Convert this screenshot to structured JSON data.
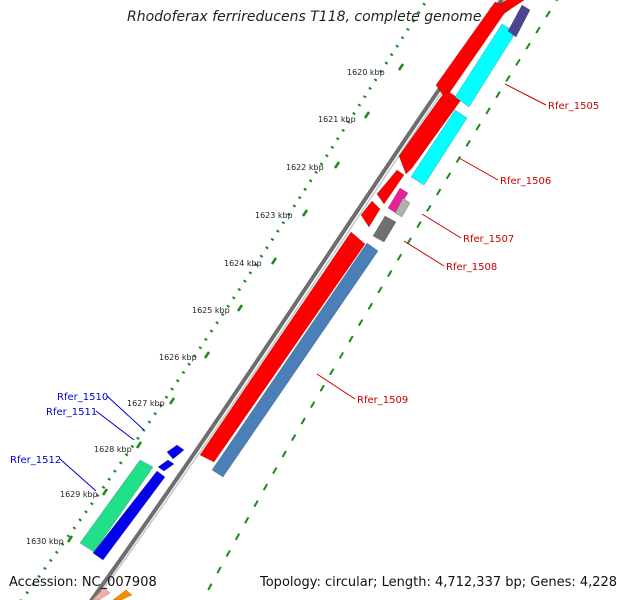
{
  "title": "Rhodoferax ferrireducens T118, complete genome",
  "footer": {
    "accession": "Accession: NC_007908",
    "summary": "Topology: circular; Length: 4,712,337 bp; Genes: 4,228"
  },
  "colors": {
    "backbone": "#808080",
    "tick_track": "#1a8a1a",
    "label_forward": "#cc0000",
    "label_reverse": "#0000cc"
  },
  "kbp_ticks": [
    "1620 kbp",
    "1621 kbp",
    "1622 kbp",
    "1623 kbp",
    "1624 kbp",
    "1625 kbp",
    "1626 kbp",
    "1627 kbp",
    "1628 kbp",
    "1629 kbp",
    "1630 kbp"
  ],
  "gene_labels": [
    {
      "text": "Rfer_1505",
      "color": "#cc0000"
    },
    {
      "text": "Rfer_1506",
      "color": "#cc0000"
    },
    {
      "text": "Rfer_1507",
      "color": "#cc0000"
    },
    {
      "text": "Rfer_1508",
      "color": "#cc0000"
    },
    {
      "text": "Rfer_1509",
      "color": "#cc0000"
    },
    {
      "text": "Rfer_1510",
      "color": "#0000cc"
    },
    {
      "text": "Rfer_1511",
      "color": "#0000cc"
    },
    {
      "text": "Rfer_1512",
      "color": "#0000cc"
    }
  ],
  "features": [
    {
      "name": "feature-red-1",
      "color": "#ff0000"
    },
    {
      "name": "feature-red-2",
      "color": "#ff0000"
    },
    {
      "name": "feature-red-3",
      "color": "#ff0000"
    },
    {
      "name": "feature-red-4",
      "color": "#ff0000"
    },
    {
      "name": "feature-red-5",
      "color": "#ff0000"
    },
    {
      "name": "feature-cyan-1",
      "color": "#00ffff"
    },
    {
      "name": "feature-cyan-2",
      "color": "#00ffff"
    },
    {
      "name": "feature-purple",
      "color": "#4b4590"
    },
    {
      "name": "feature-pink",
      "color": "#e8209a"
    },
    {
      "name": "feature-silver",
      "color": "#b0b0b0"
    },
    {
      "name": "feature-gray",
      "color": "#707070"
    },
    {
      "name": "feature-steelblue",
      "color": "#4a7fb8"
    },
    {
      "name": "feature-green",
      "color": "#22e08a"
    },
    {
      "name": "feature-blue-1",
      "color": "#0000ee"
    },
    {
      "name": "feature-blue-2",
      "color": "#0000ee"
    },
    {
      "name": "feature-blue-3",
      "color": "#0000ee"
    },
    {
      "name": "feature-orange",
      "color": "#ff8c00"
    },
    {
      "name": "feature-salmon",
      "color": "#f0b0a8"
    }
  ]
}
